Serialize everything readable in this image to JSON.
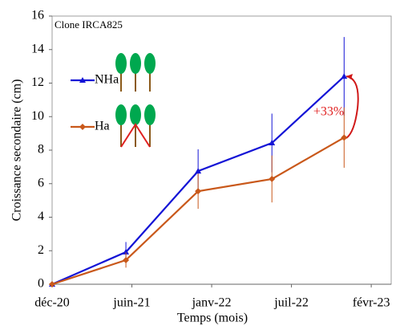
{
  "chart_data": {
    "type": "line",
    "annotation": "Clone IRCA825",
    "ratio_label": "+33%",
    "x_label": "Temps (mois)",
    "y_label": "Croissance secondaire (cm)",
    "x": [
      0,
      185,
      366,
      551,
      732
    ],
    "xlim": [
      0,
      850
    ],
    "xticks": [
      {
        "value": 0,
        "label": "déc-20"
      },
      {
        "value": 200,
        "label": "juin-21"
      },
      {
        "value": 400,
        "label": "janv-22"
      },
      {
        "value": 600,
        "label": "juil-22"
      },
      {
        "value": 800,
        "label": "févr-23"
      }
    ],
    "ylim": [
      0,
      16
    ],
    "yticks": [
      0,
      2,
      4,
      6,
      8,
      10,
      12,
      14,
      16
    ],
    "series": [
      {
        "name": "NHa",
        "color": "#1414d6",
        "marker": "triangle",
        "values": [
          0,
          1.92,
          6.75,
          8.43,
          12.4
        ],
        "errors": [
          0,
          0.6,
          1.3,
          1.75,
          2.35
        ]
      },
      {
        "name": "Ha",
        "color": "#c9581a",
        "marker": "diamond",
        "values": [
          0,
          1.44,
          5.55,
          6.28,
          8.75
        ],
        "errors": [
          0,
          0.45,
          1.05,
          1.4,
          1.8
        ]
      }
    ]
  }
}
